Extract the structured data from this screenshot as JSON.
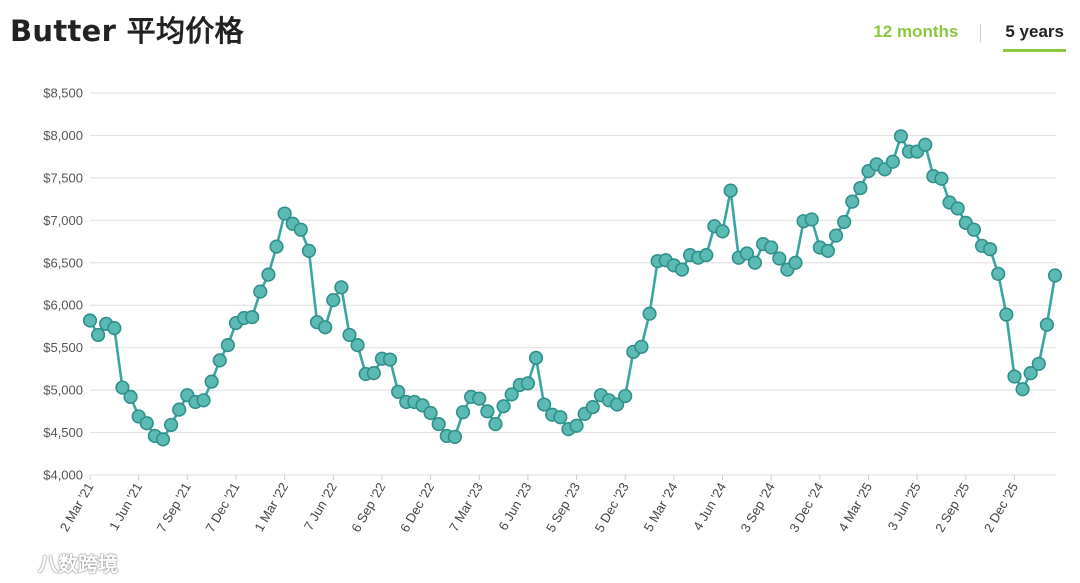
{
  "page": {
    "title": "Butter 平均价格"
  },
  "range_tabs": {
    "tab_12": "12 months",
    "tab_5": "5 years",
    "active": "5 years"
  },
  "watermark": {
    "text": "八数跨境"
  },
  "colors": {
    "line": "#3aa6a2",
    "marker_fill": "#5bbab3",
    "marker_stroke": "#2f8f8a",
    "accent": "#8dc63f",
    "grid": "#e3e3e3"
  },
  "chart_data": {
    "type": "line",
    "title": "Butter 平均价格",
    "xlabel": "",
    "ylabel": "",
    "ylim": [
      4000,
      8500
    ],
    "y_ticks": [
      4000,
      4500,
      5000,
      5500,
      6000,
      6500,
      7000,
      7500,
      8000,
      8500
    ],
    "y_tick_labels": [
      "$4,000",
      "$4,500",
      "$5,000",
      "$5,500",
      "$6,000",
      "$6,500",
      "$7,000",
      "$7,500",
      "$8,000",
      "$8,500"
    ],
    "grid": true,
    "x_tick_labels": [
      "2 Mar '21",
      "1 Jun '21",
      "7 Sep '21",
      "7 Dec '21",
      "1 Mar '22",
      "7 Jun '22",
      "6 Sep '22",
      "6 Dec '22",
      "7 Mar '23",
      "6 Jun '23",
      "5 Sep '23",
      "5 Dec '23",
      "5 Mar '24",
      "4 Jun '24",
      "3 Sep '24",
      "3 Dec '24",
      "4 Mar '25",
      "3 Jun '25",
      "2 Sep '25",
      "2 Dec '25"
    ],
    "x_tick_index": [
      0,
      6,
      12,
      18,
      24,
      30,
      36,
      42,
      48,
      54,
      60,
      66,
      72,
      78,
      84,
      90,
      96,
      102,
      108,
      114
    ],
    "series": [
      {
        "values": [
          5820,
          5650,
          5780,
          5730,
          5030,
          4920,
          4690,
          4610,
          4460,
          4420,
          4590,
          4770,
          4940,
          4860,
          4880,
          5100,
          5350,
          5530,
          5790,
          5850,
          5860,
          6160,
          6360,
          6690,
          7080,
          6960,
          6890,
          6640,
          5800,
          5740,
          6060,
          6210,
          5650,
          5530,
          5190,
          5200,
          5370,
          5360,
          4980,
          4860,
          4860,
          4820,
          4730,
          4600,
          4460,
          4450,
          4740,
          4920,
          4900,
          4750,
          4600,
          4810,
          4950,
          5060,
          5080,
          5380,
          4830,
          4710,
          4680,
          4540,
          4580,
          4720,
          4800,
          4940,
          4880,
          4830,
          4930,
          5450,
          5510,
          5900,
          6520,
          6530,
          6470,
          6420,
          6590,
          6560,
          6590,
          6930,
          6870,
          7350,
          6560,
          6610,
          6500,
          6720,
          6680,
          6550,
          6420,
          6500,
          6990,
          7010,
          6680,
          6640,
          6820,
          6980,
          7220,
          7380,
          7580,
          7660,
          7600,
          7690,
          7990,
          7810,
          7810,
          7890,
          7520,
          7490,
          7210,
          7140,
          6970,
          6890,
          6700,
          6660,
          6370,
          5890,
          5160,
          5010,
          5200,
          5310,
          5770,
          6350
        ]
      }
    ]
  }
}
